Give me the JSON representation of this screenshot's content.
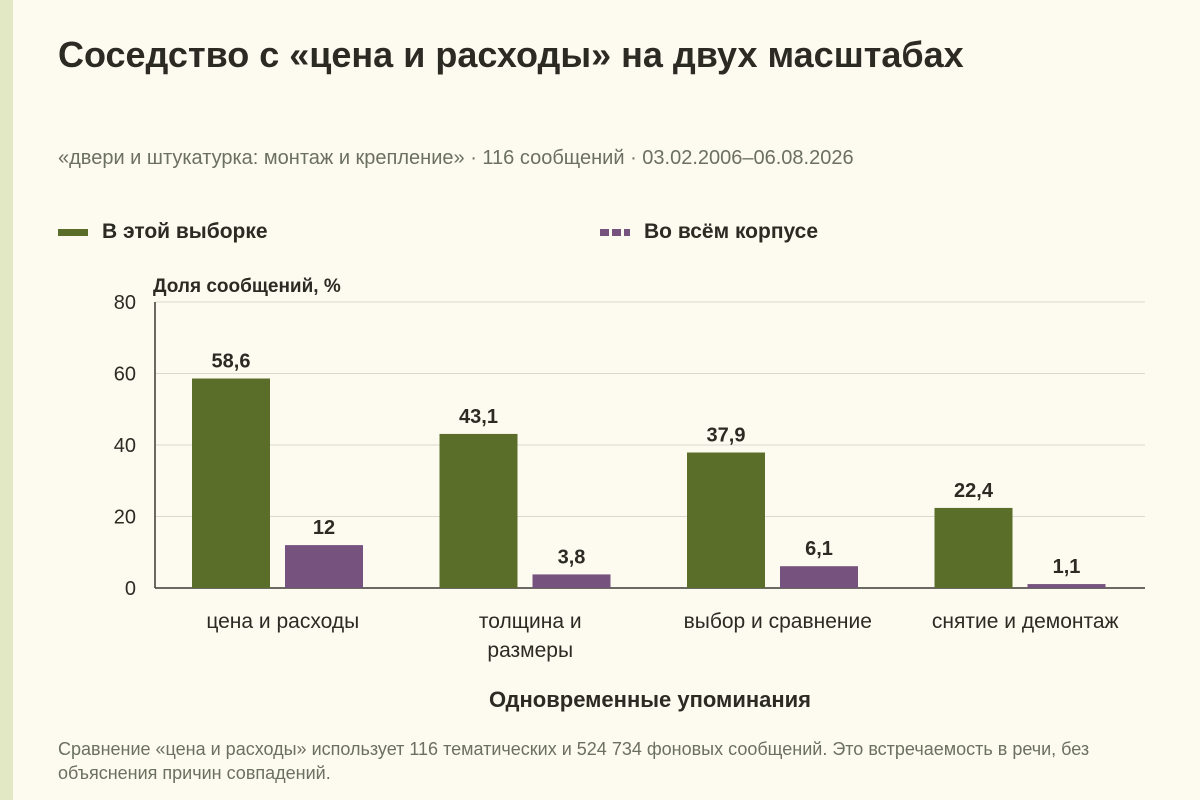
{
  "title": "Соседство с «цена и расходы» на двух масштабах",
  "subtitle": "«двери и штукатурка: монтаж и крепление» · 116 сообщений · 03.02.2006–06.08.2026",
  "footnote": "Сравнение «цена и расходы» использует 116 тематических и 524 734 фоновых сообщений. Это встречаемость в речи, без объяснения причин совпадений.",
  "colors": {
    "series1": "#5a6e2a",
    "series2": "#76537f",
    "grid": "#d9d9d0",
    "axis": "#3a3a33",
    "text": "#2b2b24"
  },
  "chart_data": {
    "type": "bar",
    "categories": [
      "цена и расходы",
      "толщина и размеры",
      "выбор и сравнение",
      "снятие и демонтаж"
    ],
    "category_lines": [
      [
        "цена и расходы"
      ],
      [
        "толщина и",
        "размеры"
      ],
      [
        "выбор и сравнение"
      ],
      [
        "снятие и демонтаж"
      ]
    ],
    "series": [
      {
        "name": "В этой выборке",
        "values": [
          58.6,
          43.1,
          37.9,
          22.4
        ],
        "labels": [
          "58,6",
          "43,1",
          "37,9",
          "22,4"
        ]
      },
      {
        "name": "Во всём корпусе",
        "values": [
          12,
          3.8,
          6.1,
          1.1
        ],
        "labels": [
          "12",
          "3,8",
          "6,1",
          "1,1"
        ]
      }
    ],
    "ylabel": "Доля сообщений, %",
    "xlabel": "Одновременные упоминания",
    "ylim": [
      0,
      80
    ],
    "yticks": [
      0,
      20,
      40,
      60,
      80
    ],
    "grid": true,
    "legend": "top"
  }
}
